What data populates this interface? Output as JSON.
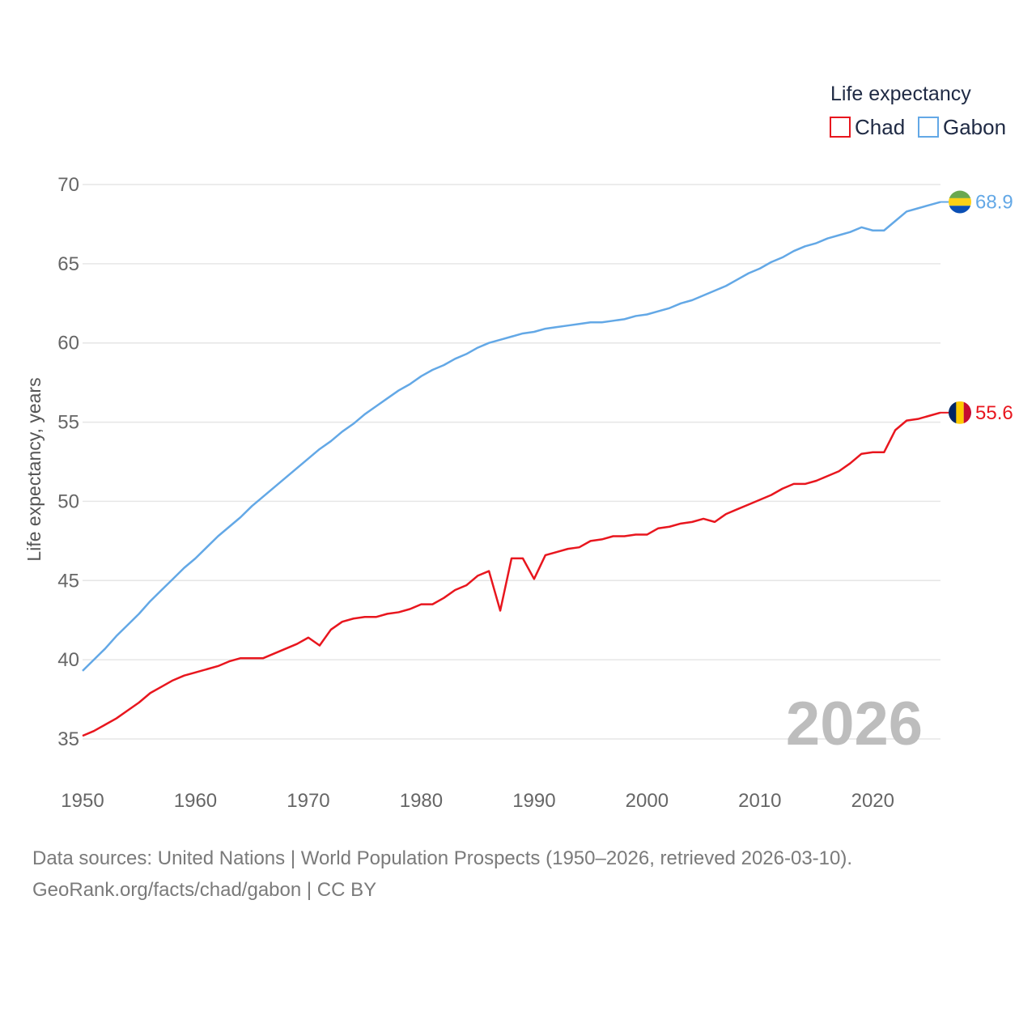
{
  "chart_data": {
    "type": "line",
    "legend_title": "Life expectancy",
    "legend_position": "top-right",
    "ylabel": "Life expectancy, years",
    "xlabel": "",
    "xlim": [
      1950,
      2026
    ],
    "ylim": [
      33,
      71
    ],
    "x_ticks": [
      1950,
      1960,
      1970,
      1980,
      1990,
      2000,
      2010,
      2020
    ],
    "y_ticks": [
      35,
      40,
      45,
      50,
      55,
      60,
      65,
      70
    ],
    "grid": true,
    "year_watermark": "2026",
    "x": [
      1950,
      1951,
      1952,
      1953,
      1954,
      1955,
      1956,
      1957,
      1958,
      1959,
      1960,
      1961,
      1962,
      1963,
      1964,
      1965,
      1966,
      1967,
      1968,
      1969,
      1970,
      1971,
      1972,
      1973,
      1974,
      1975,
      1976,
      1977,
      1978,
      1979,
      1980,
      1981,
      1982,
      1983,
      1984,
      1985,
      1986,
      1987,
      1988,
      1989,
      1990,
      1991,
      1992,
      1993,
      1994,
      1995,
      1996,
      1997,
      1998,
      1999,
      2000,
      2001,
      2002,
      2003,
      2004,
      2005,
      2006,
      2007,
      2008,
      2009,
      2010,
      2011,
      2012,
      2013,
      2014,
      2015,
      2016,
      2017,
      2018,
      2019,
      2020,
      2021,
      2022,
      2023,
      2024,
      2025,
      2026
    ],
    "series": [
      {
        "name": "Chad",
        "color": "#e8161e",
        "end_label": "55.6",
        "flag": "chad-flag-icon",
        "values": [
          35.2,
          35.5,
          35.9,
          36.3,
          36.8,
          37.3,
          37.9,
          38.3,
          38.7,
          39.0,
          39.2,
          39.4,
          39.6,
          39.9,
          40.1,
          40.1,
          40.1,
          40.4,
          40.7,
          41.0,
          41.4,
          40.9,
          41.9,
          42.4,
          42.6,
          42.7,
          42.7,
          42.9,
          43.0,
          43.2,
          43.5,
          43.5,
          43.9,
          44.4,
          44.7,
          45.3,
          45.6,
          43.1,
          46.4,
          46.4,
          45.1,
          46.6,
          46.8,
          47.0,
          47.1,
          47.5,
          47.6,
          47.8,
          47.8,
          47.9,
          47.9,
          48.3,
          48.4,
          48.6,
          48.7,
          48.9,
          48.7,
          49.2,
          49.5,
          49.8,
          50.1,
          50.4,
          50.8,
          51.1,
          51.1,
          51.3,
          51.6,
          51.9,
          52.4,
          53.0,
          53.1,
          53.1,
          54.5,
          55.1,
          55.2,
          55.4,
          55.6
        ]
      },
      {
        "name": "Gabon",
        "color": "#63a8e6",
        "end_label": "68.9",
        "flag": "gabon-flag-icon",
        "values": [
          39.3,
          40.0,
          40.7,
          41.5,
          42.2,
          42.9,
          43.7,
          44.4,
          45.1,
          45.8,
          46.4,
          47.1,
          47.8,
          48.4,
          49.0,
          49.7,
          50.3,
          50.9,
          51.5,
          52.1,
          52.7,
          53.3,
          53.8,
          54.4,
          54.9,
          55.5,
          56.0,
          56.5,
          57.0,
          57.4,
          57.9,
          58.3,
          58.6,
          59.0,
          59.3,
          59.7,
          60.0,
          60.2,
          60.4,
          60.6,
          60.7,
          60.9,
          61.0,
          61.1,
          61.2,
          61.3,
          61.3,
          61.4,
          61.5,
          61.7,
          61.8,
          62.0,
          62.2,
          62.5,
          62.7,
          63.0,
          63.3,
          63.6,
          64.0,
          64.4,
          64.7,
          65.1,
          65.4,
          65.8,
          66.1,
          66.3,
          66.6,
          66.8,
          67.0,
          67.3,
          67.1,
          67.1,
          67.7,
          68.3,
          68.5,
          68.7,
          68.9
        ]
      }
    ]
  },
  "source": {
    "line1": "Data sources: United Nations | World Population Prospects (1950–2026, retrieved 2026-03-10).",
    "line2": "GeoRank.org/facts/chad/gabon | CC BY"
  }
}
